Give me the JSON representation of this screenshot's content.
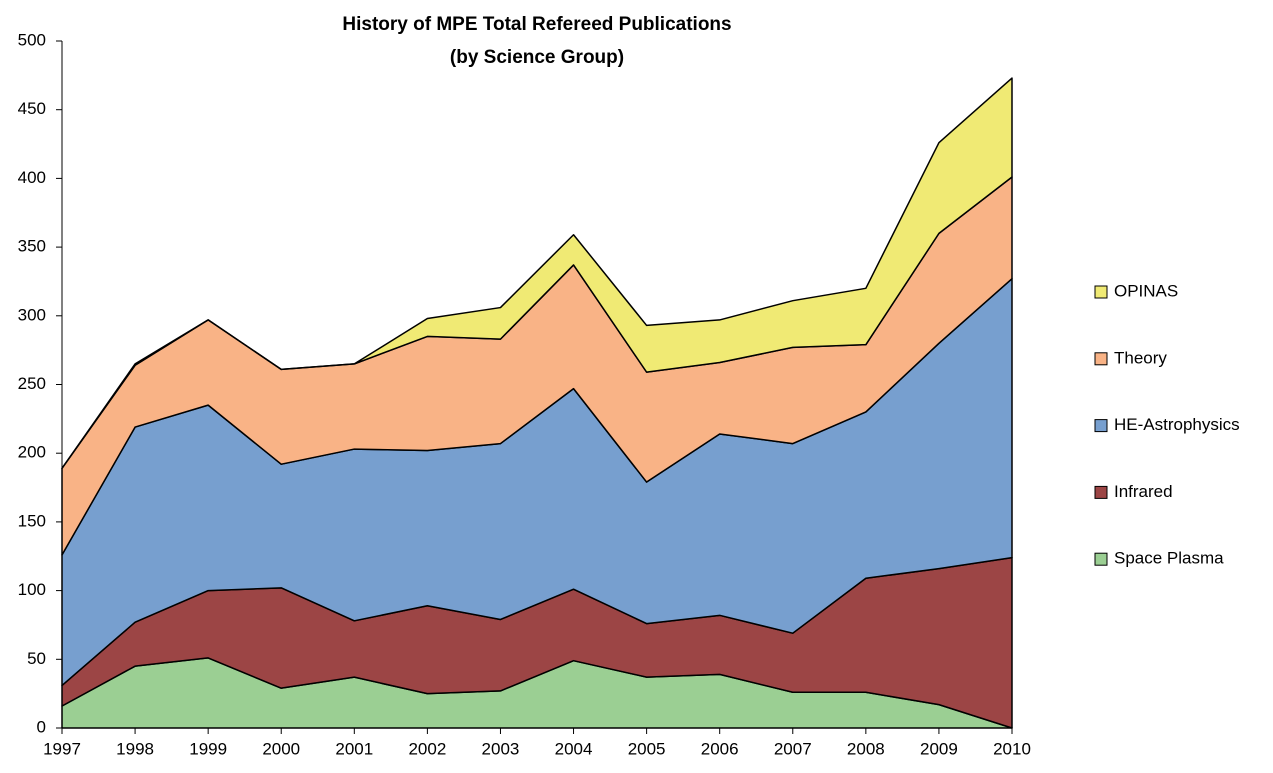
{
  "chart_data": {
    "type": "stacked-area",
    "title": "History of MPE Total Refereed Publications",
    "subtitle": "(by Science Group)",
    "categories": [
      "1997",
      "1998",
      "1999",
      "2000",
      "2001",
      "2002",
      "2003",
      "2004",
      "2005",
      "2006",
      "2007",
      "2008",
      "2009",
      "2010"
    ],
    "series": [
      {
        "name": "Space Plasma",
        "color": "#9bcf93",
        "values": [
          16,
          45,
          51,
          29,
          37,
          25,
          27,
          49,
          37,
          39,
          26,
          26,
          17,
          0
        ]
      },
      {
        "name": "Infrared",
        "color": "#9c4545",
        "values": [
          15,
          32,
          49,
          73,
          41,
          64,
          52,
          52,
          39,
          43,
          43,
          83,
          99,
          124
        ]
      },
      {
        "name": "HE-Astrophysics",
        "color": "#779fcf",
        "values": [
          95,
          142,
          135,
          90,
          125,
          113,
          128,
          146,
          103,
          132,
          138,
          121,
          164,
          203
        ]
      },
      {
        "name": "Theory",
        "color": "#f9b386",
        "values": [
          63,
          45,
          62,
          69,
          62,
          83,
          76,
          90,
          80,
          52,
          70,
          49,
          80,
          74
        ]
      },
      {
        "name": "OPINAS",
        "color": "#f0ea74",
        "values": [
          0,
          1,
          0,
          0,
          0,
          13,
          23,
          22,
          34,
          31,
          34,
          41,
          66,
          72
        ]
      }
    ],
    "ylim": [
      0,
      500
    ],
    "yticks": [
      0,
      50,
      100,
      150,
      200,
      250,
      300,
      350,
      400,
      450,
      500
    ],
    "grid": false,
    "legend": "right"
  }
}
